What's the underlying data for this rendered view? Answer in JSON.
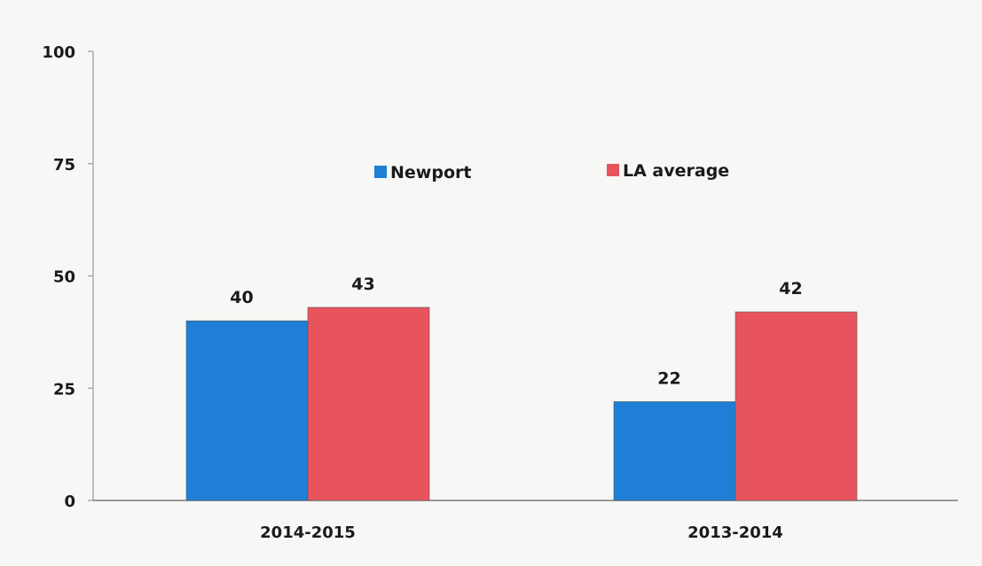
{
  "chart_data": {
    "type": "bar",
    "categories": [
      "2014-2015",
      "2013-2014"
    ],
    "series": [
      {
        "name": "Newport",
        "values": [
          40,
          22
        ],
        "color": "#1f7fd6"
      },
      {
        "name": "LA average",
        "values": [
          43,
          42
        ],
        "color": "#e8545e"
      }
    ],
    "ylim": [
      0,
      100
    ],
    "yticks": [
      0,
      25,
      50,
      75,
      100
    ],
    "grid": false,
    "legend_position": "top-center",
    "data_labels": true
  }
}
